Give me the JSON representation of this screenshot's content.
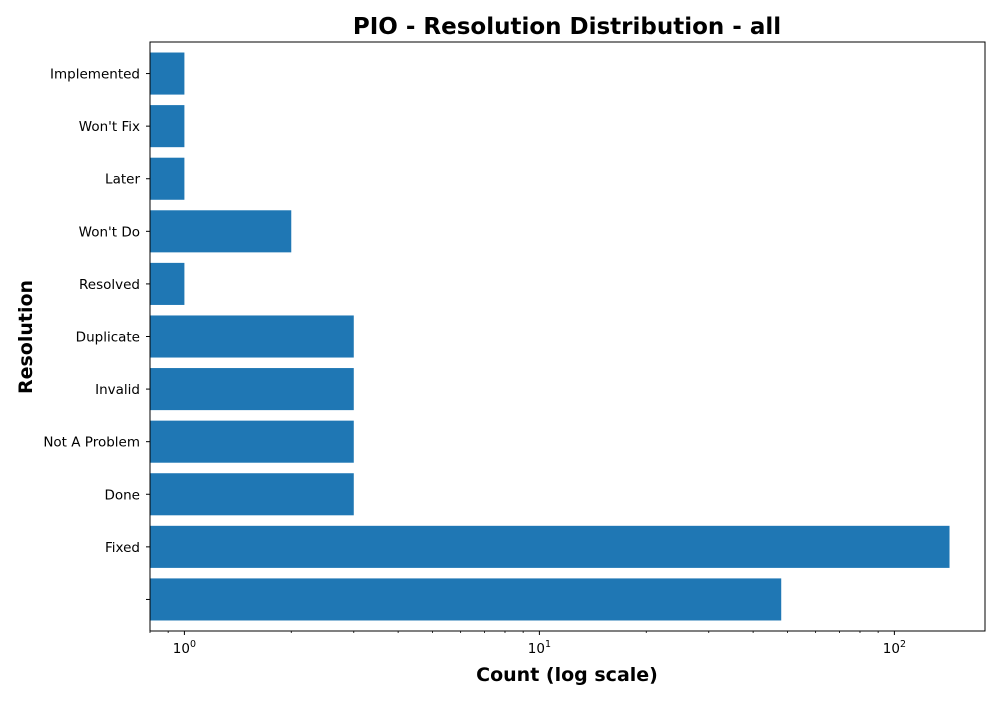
{
  "chart_data": {
    "type": "bar",
    "orientation": "horizontal",
    "title": "PIO - Resolution Distribution - all",
    "xlabel": "Count (log scale)",
    "ylabel": "Resolution",
    "x_scale": "log",
    "xlim": [
      0.8,
      180
    ],
    "x_ticks": [
      {
        "base": "10",
        "exp": "0",
        "value": 1
      },
      {
        "base": "10",
        "exp": "1",
        "value": 10
      },
      {
        "base": "10",
        "exp": "2",
        "value": 100
      }
    ],
    "categories": [
      "",
      "Fixed",
      "Done",
      "Not A Problem",
      "Invalid",
      "Duplicate",
      "Resolved",
      "Won't Do",
      "Later",
      "Won't Fix",
      "Implemented"
    ],
    "values": [
      48,
      143,
      3,
      3,
      3,
      3,
      1,
      2,
      1,
      1,
      1
    ],
    "bar_color": "#1f77b4",
    "grid": false,
    "legend": "none"
  }
}
